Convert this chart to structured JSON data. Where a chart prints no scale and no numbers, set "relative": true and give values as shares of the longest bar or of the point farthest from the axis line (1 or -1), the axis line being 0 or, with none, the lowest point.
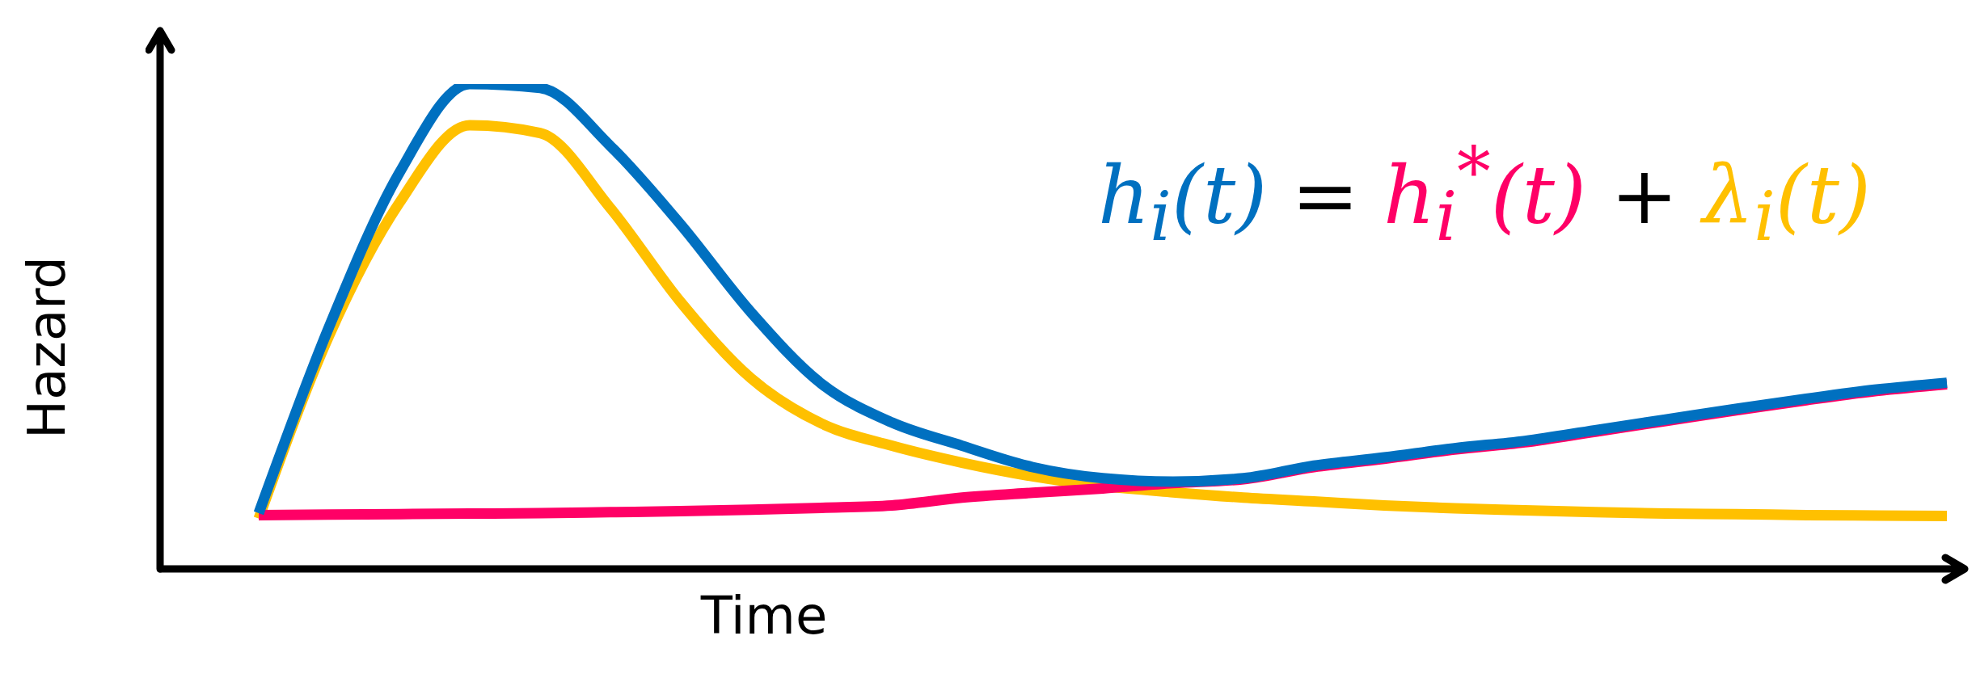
{
  "chart_data": {
    "type": "line",
    "relative": true,
    "xlabel": "Time",
    "ylabel": "Hazard",
    "categories": [
      null,
      null,
      null,
      null,
      null,
      null,
      null,
      null,
      null,
      null,
      null,
      null,
      null,
      null,
      null,
      null,
      null,
      null,
      null,
      null,
      null,
      null,
      null,
      null,
      null
    ],
    "series": [
      {
        "name": "h$_{i}$(t)",
        "color": "#0070c0",
        "values": [
          0.115,
          0.499,
          0.817,
          1.0,
          0.992,
          0.872,
          0.71,
          0.529,
          0.382,
          0.302,
          0.254,
          0.21,
          0.187,
          0.18,
          0.187,
          0.213,
          0.23,
          0.249,
          0.264,
          0.286,
          0.308,
          0.33,
          0.351,
          0.37,
          0.384
        ]
      },
      {
        "name": "h$_{i}$$^{*}$(t)",
        "color": "#ff0066",
        "values": [
          0.111,
          0.112,
          0.113,
          0.114,
          0.115,
          0.117,
          0.119,
          0.122,
          0.126,
          0.131,
          0.147,
          0.157,
          0.166,
          0.177,
          0.185,
          0.21,
          0.227,
          0.246,
          0.261,
          0.283,
          0.305,
          0.327,
          0.348,
          0.367,
          0.381
        ]
      },
      {
        "name": "λ$_{i}$(t)",
        "color": "#ffc000",
        "values": [
          0.104,
          0.481,
          0.755,
          0.915,
          0.899,
          0.744,
          0.55,
          0.393,
          0.3,
          0.254,
          0.219,
          0.191,
          0.171,
          0.158,
          0.147,
          0.139,
          0.131,
          0.125,
          0.121,
          0.117,
          0.114,
          0.113,
          0.111,
          0.11,
          0.109
        ]
      }
    ],
    "annotations": [
      "=",
      "+"
    ],
    "legend": "top right",
    "grid": false,
    "marker": "none",
    "line_style": "solid"
  }
}
